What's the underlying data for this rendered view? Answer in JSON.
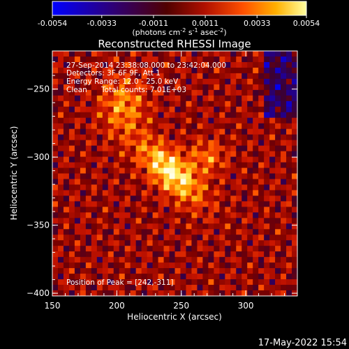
{
  "colorbar": {
    "tick_labels": [
      "-0.0054",
      "-0.0033",
      "-0.0011",
      "0.0011",
      "0.0033",
      "0.0054"
    ],
    "unit_label": "(photons cm",
    "unit_sup1": "-2",
    "unit_mid": " s",
    "unit_sup2": "-1",
    "unit_end": " asec",
    "unit_sup3": "-2",
    "unit_close": ")"
  },
  "annotations": {
    "time_range": "27-Sep-2014 23:38:08.000 to 23:42:04.000",
    "detectors": "Detectors: 3F 6F 9F, Att 1",
    "energy": "Energy Range: 12.0 - 25.0 keV",
    "clean": "Clean",
    "total_counts": "Total counts: 7.01E+03",
    "peak": "Position of Peak = [242,-311]"
  },
  "footer_date": "17-May-2022 15:54",
  "chart_data": {
    "type": "heatmap",
    "title": "Reconstructed RHESSI Image",
    "xlabel": "Heliocentric X (arcsec)",
    "ylabel": "Heliocentric Y (arcsec)",
    "xlim": [
      150,
      340
    ],
    "ylim": [
      -402,
      -222
    ],
    "x_ticks": [
      150,
      200,
      250,
      300
    ],
    "y_ticks": [
      -250,
      -300,
      -350,
      -400
    ],
    "colorbar_range": [
      -0.0054,
      0.0054
    ],
    "peak": [
      242,
      -311
    ],
    "colormap": [
      "#0000ff",
      "#200080",
      "#400040",
      "#800000",
      "#c02000",
      "#ff6000",
      "#ffb000",
      "#ffff80",
      "#ffffff"
    ]
  }
}
